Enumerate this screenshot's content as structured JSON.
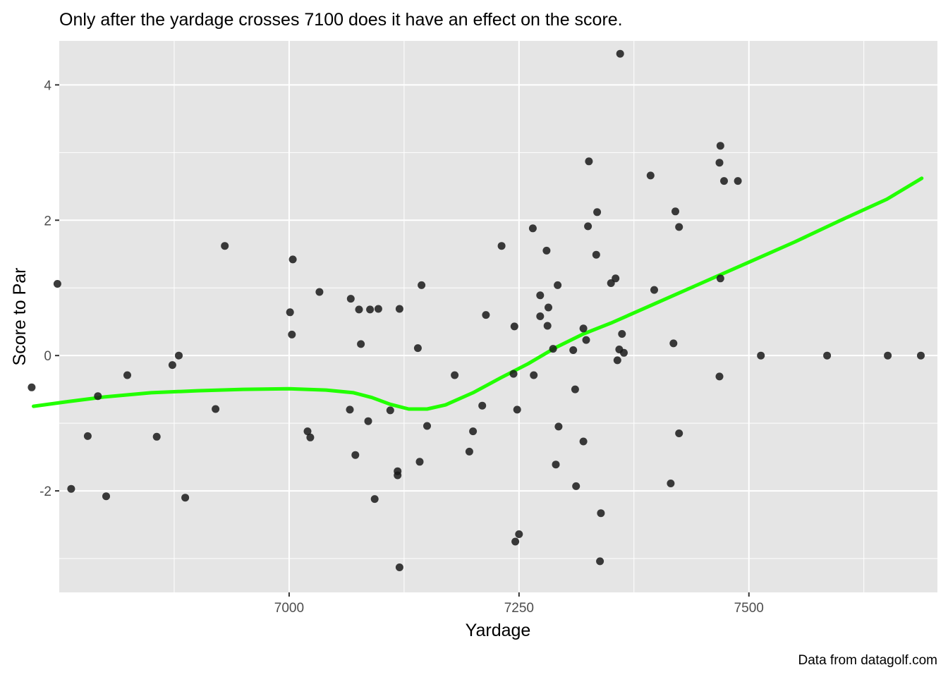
{
  "chart_data": {
    "type": "scatter",
    "title": "Only after the yardage crosses 7100 does it have an effect on the score.",
    "xlabel": "Yardage",
    "ylabel": "Score to Par",
    "caption": "Data from datagolf.com",
    "xlim": [
      6750,
      7705
    ],
    "ylim": [
      -3.5,
      4.65
    ],
    "x_ticks": [
      7000,
      7250,
      7500
    ],
    "x_tick_labels": [
      "7000",
      "7250",
      "7500"
    ],
    "y_ticks": [
      -2,
      0,
      2,
      4
    ],
    "y_tick_labels": [
      "-2",
      "0",
      "2",
      "4"
    ],
    "grid": true,
    "colors": {
      "panel": "#e5e5e5",
      "grid": "#ffffff",
      "points": "#1a1a1a",
      "smooth": "#22ff00"
    },
    "series": [
      {
        "kind": "points",
        "x": [
          6720,
          6748,
          6763,
          6781,
          6792,
          6801,
          6824,
          6856,
          6873,
          6880,
          6887,
          6920,
          6930,
          7001,
          7003,
          7004,
          7023,
          7020,
          7033,
          7066,
          7067,
          7072,
          7076,
          7078,
          7086,
          7088,
          7093,
          7097,
          7110,
          7118,
          7118,
          7120,
          7120,
          7140,
          7142,
          7144,
          7150,
          7180,
          7196,
          7200,
          7210,
          7214,
          7231,
          7244,
          7245,
          7246,
          7248,
          7250,
          7265,
          7266,
          7273,
          7273,
          7280,
          7281,
          7282,
          7287,
          7290,
          7292,
          7293,
          7309,
          7311,
          7312,
          7320,
          7320,
          7323,
          7325,
          7326,
          7334,
          7335,
          7338,
          7339,
          7350,
          7355,
          7357,
          7359,
          7360,
          7362,
          7364,
          7393,
          7397,
          7415,
          7418,
          7420,
          7424,
          7424,
          7468,
          7468,
          7469,
          7469,
          7473,
          7488,
          7513,
          7585,
          7651,
          7687
        ],
        "y": [
          -0.47,
          1.06,
          -1.97,
          -1.19,
          -0.6,
          -2.08,
          -0.29,
          -1.2,
          -0.14,
          0.0,
          -2.1,
          -0.79,
          1.62,
          0.64,
          0.31,
          1.42,
          -1.21,
          -1.12,
          0.94,
          -0.8,
          0.84,
          -1.47,
          0.68,
          0.17,
          -0.97,
          0.68,
          -2.12,
          0.69,
          -0.81,
          -1.77,
          -1.71,
          0.69,
          -3.13,
          0.11,
          -1.57,
          1.04,
          -1.04,
          -0.29,
          -1.42,
          -1.12,
          -0.74,
          0.6,
          1.62,
          -0.27,
          0.43,
          -2.75,
          -0.8,
          -2.64,
          1.88,
          -0.29,
          0.58,
          0.89,
          1.55,
          0.44,
          0.71,
          0.1,
          -1.61,
          1.04,
          -1.05,
          0.08,
          -0.5,
          -1.93,
          0.4,
          -1.27,
          0.23,
          1.91,
          2.87,
          1.49,
          2.12,
          -3.04,
          -2.33,
          1.07,
          1.14,
          -0.07,
          0.09,
          4.46,
          0.32,
          0.04,
          2.66,
          0.97,
          -1.89,
          0.18,
          2.13,
          1.9,
          -1.15,
          -0.31,
          2.85,
          3.1,
          1.14,
          2.58,
          2.58,
          0,
          0,
          0,
          0
        ]
      },
      {
        "kind": "smooth",
        "x": [
          6722,
          6760,
          6800,
          6850,
          6900,
          6950,
          7000,
          7040,
          7070,
          7090,
          7110,
          7130,
          7150,
          7170,
          7200,
          7230,
          7260,
          7290,
          7320,
          7350,
          7400,
          7450,
          7500,
          7550,
          7600,
          7650,
          7688
        ],
        "y": [
          -0.75,
          -0.68,
          -0.61,
          -0.55,
          -0.52,
          -0.5,
          -0.49,
          -0.51,
          -0.55,
          -0.62,
          -0.72,
          -0.79,
          -0.79,
          -0.73,
          -0.55,
          -0.33,
          -0.12,
          0.12,
          0.32,
          0.48,
          0.78,
          1.08,
          1.38,
          1.68,
          2.0,
          2.31,
          2.62
        ]
      }
    ]
  }
}
